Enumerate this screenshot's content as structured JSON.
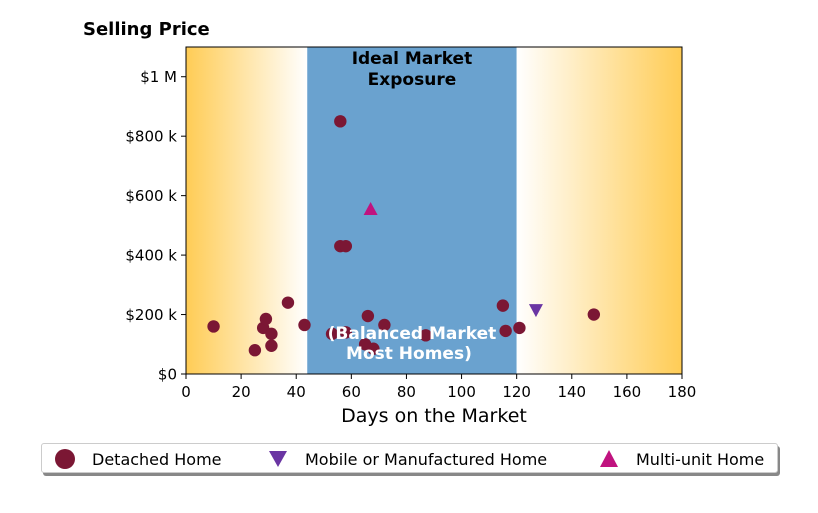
{
  "chart_data": {
    "type": "scatter",
    "title": "Selling Price",
    "xlabel": "Days on the Market",
    "ylabel": "",
    "xlim": [
      0,
      180
    ],
    "ylim": [
      0,
      1100000
    ],
    "x_ticks": [
      {
        "value": 0,
        "label": "0"
      },
      {
        "value": 20,
        "label": "20"
      },
      {
        "value": 40,
        "label": "40"
      },
      {
        "value": 60,
        "label": "60"
      },
      {
        "value": 80,
        "label": "80"
      },
      {
        "value": 100,
        "label": "100"
      },
      {
        "value": 120,
        "label": "120"
      },
      {
        "value": 140,
        "label": "140"
      },
      {
        "value": 160,
        "label": "160"
      },
      {
        "value": 180,
        "label": "180"
      }
    ],
    "y_ticks": [
      {
        "value": 0,
        "label": "$0"
      },
      {
        "value": 200000,
        "label": "$200 k"
      },
      {
        "value": 400000,
        "label": "$400 k"
      },
      {
        "value": 600000,
        "label": "$600 k"
      },
      {
        "value": 800000,
        "label": "$800 k"
      },
      {
        "value": 1000000,
        "label": "$1 M"
      }
    ],
    "grid": false,
    "legend_position": "bottom",
    "background_zones": {
      "ideal_range": [
        44,
        120
      ],
      "ideal_color": "#6aa2cf",
      "edge_color": "#ffcc55",
      "annotations": [
        {
          "text_lines": [
            "Ideal Market",
            "Exposure"
          ],
          "color": "#000000"
        },
        {
          "text_lines": [
            "(Balanced Market",
            "Most Homes)"
          ],
          "color": "#ffffff"
        }
      ]
    },
    "series": [
      {
        "name": "Detached Home",
        "marker": "circle",
        "color": "#7b1734",
        "points": [
          {
            "x": 10,
            "y": 160000
          },
          {
            "x": 25,
            "y": 80000
          },
          {
            "x": 28,
            "y": 155000
          },
          {
            "x": 29,
            "y": 185000
          },
          {
            "x": 31,
            "y": 135000
          },
          {
            "x": 31,
            "y": 95000
          },
          {
            "x": 37,
            "y": 240000
          },
          {
            "x": 43,
            "y": 165000
          },
          {
            "x": 53,
            "y": 135000
          },
          {
            "x": 56,
            "y": 850000
          },
          {
            "x": 56,
            "y": 430000
          },
          {
            "x": 58,
            "y": 430000
          },
          {
            "x": 58,
            "y": 140000
          },
          {
            "x": 65,
            "y": 100000
          },
          {
            "x": 66,
            "y": 195000
          },
          {
            "x": 68,
            "y": 85000
          },
          {
            "x": 72,
            "y": 165000
          },
          {
            "x": 87,
            "y": 130000
          },
          {
            "x": 115,
            "y": 230000
          },
          {
            "x": 116,
            "y": 145000
          },
          {
            "x": 121,
            "y": 155000
          },
          {
            "x": 148,
            "y": 200000
          }
        ]
      },
      {
        "name": "Mobile or Manufactured Home",
        "marker": "triangle-down",
        "color": "#6a35a3",
        "points": [
          {
            "x": 127,
            "y": 215000
          }
        ]
      },
      {
        "name": "Multi-unit Home",
        "marker": "triangle-up",
        "color": "#c0137f",
        "points": [
          {
            "x": 67,
            "y": 555000
          }
        ]
      }
    ]
  }
}
